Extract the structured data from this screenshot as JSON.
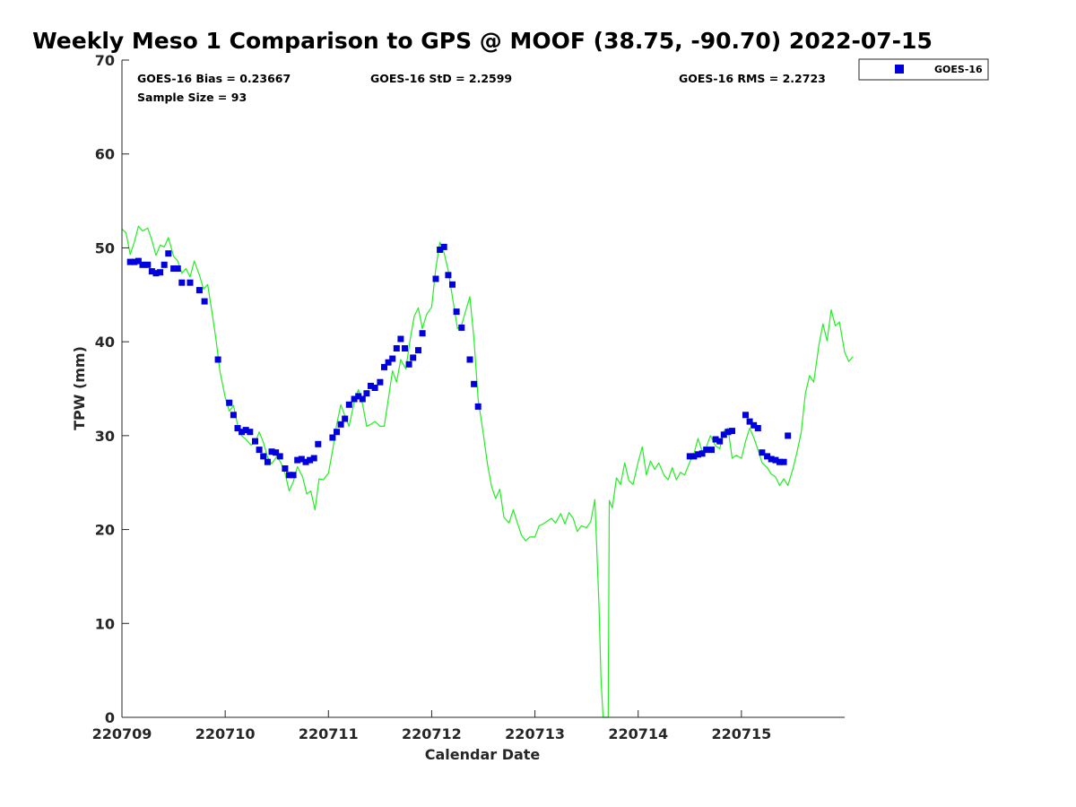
{
  "chart_data": {
    "type": "scatter",
    "title": "Weekly Meso 1 Comparison to GPS @ MOOF (38.75, -90.70) 2022-07-15",
    "xlabel": "Calendar Date",
    "ylabel": "TPW (mm)",
    "xlim": [
      0,
      7
    ],
    "ylim": [
      0,
      70
    ],
    "x_tick_labels": [
      "220709",
      "220710",
      "220711",
      "220712",
      "220713",
      "220714",
      "220715"
    ],
    "y_ticks": [
      0,
      10,
      20,
      30,
      40,
      50,
      60,
      70
    ],
    "legend": {
      "position": "outside-top-right",
      "entries": [
        "GOES-16"
      ]
    },
    "stats": {
      "bias": "GOES-16 Bias = 0.23667",
      "std": "GOES-16 StD = 2.2599",
      "rms": "GOES-16 RMS = 2.2723",
      "sample": "Sample Size = 93"
    },
    "series": [
      {
        "name": "GOES-16",
        "marker": "square",
        "color": "#0000dd",
        "points": [
          [
            0.08,
            48.5
          ],
          [
            0.12,
            48.5
          ],
          [
            0.16,
            48.6
          ],
          [
            0.2,
            48.2
          ],
          [
            0.25,
            48.2
          ],
          [
            0.29,
            47.5
          ],
          [
            0.33,
            47.3
          ],
          [
            0.37,
            47.4
          ],
          [
            0.41,
            48.2
          ],
          [
            0.45,
            49.4
          ],
          [
            0.5,
            47.8
          ],
          [
            0.54,
            47.8
          ],
          [
            0.58,
            46.3
          ],
          [
            0.66,
            46.3
          ],
          [
            0.75,
            45.5
          ],
          [
            0.8,
            44.3
          ],
          [
            0.93,
            38.1
          ],
          [
            1.04,
            33.5
          ],
          [
            1.08,
            32.2
          ],
          [
            1.12,
            30.8
          ],
          [
            1.16,
            30.4
          ],
          [
            1.2,
            30.6
          ],
          [
            1.24,
            30.4
          ],
          [
            1.29,
            29.4
          ],
          [
            1.33,
            28.5
          ],
          [
            1.37,
            27.8
          ],
          [
            1.41,
            27.2
          ],
          [
            1.45,
            28.3
          ],
          [
            1.49,
            28.2
          ],
          [
            1.53,
            27.8
          ],
          [
            1.58,
            26.5
          ],
          [
            1.62,
            25.8
          ],
          [
            1.66,
            25.8
          ],
          [
            1.7,
            27.4
          ],
          [
            1.74,
            27.5
          ],
          [
            1.78,
            27.2
          ],
          [
            1.82,
            27.4
          ],
          [
            1.86,
            27.6
          ],
          [
            1.9,
            29.1
          ],
          [
            2.04,
            29.8
          ],
          [
            2.08,
            30.4
          ],
          [
            2.12,
            31.2
          ],
          [
            2.16,
            31.8
          ],
          [
            2.2,
            33.3
          ],
          [
            2.25,
            33.9
          ],
          [
            2.29,
            34.2
          ],
          [
            2.33,
            33.9
          ],
          [
            2.37,
            34.5
          ],
          [
            2.41,
            35.3
          ],
          [
            2.45,
            35.1
          ],
          [
            2.5,
            35.7
          ],
          [
            2.54,
            37.3
          ],
          [
            2.58,
            37.8
          ],
          [
            2.62,
            38.2
          ],
          [
            2.66,
            39.3
          ],
          [
            2.7,
            40.3
          ],
          [
            2.74,
            39.3
          ],
          [
            2.78,
            37.6
          ],
          [
            2.82,
            38.3
          ],
          [
            2.87,
            39.1
          ],
          [
            2.91,
            40.9
          ],
          [
            3.04,
            46.7
          ],
          [
            3.08,
            49.8
          ],
          [
            3.12,
            50.1
          ],
          [
            3.16,
            47.1
          ],
          [
            3.2,
            46.1
          ],
          [
            3.24,
            43.2
          ],
          [
            3.29,
            41.5
          ],
          [
            3.37,
            38.1
          ],
          [
            3.41,
            35.5
          ],
          [
            3.45,
            33.1
          ],
          [
            5.5,
            27.8
          ],
          [
            5.54,
            27.8
          ],
          [
            5.58,
            28.0
          ],
          [
            5.62,
            28.1
          ],
          [
            5.66,
            28.5
          ],
          [
            5.71,
            28.5
          ],
          [
            5.75,
            29.6
          ],
          [
            5.79,
            29.4
          ],
          [
            5.83,
            30.1
          ],
          [
            5.87,
            30.4
          ],
          [
            5.91,
            30.5
          ],
          [
            6.04,
            32.2
          ],
          [
            6.08,
            31.5
          ],
          [
            6.12,
            31.1
          ],
          [
            6.16,
            30.8
          ],
          [
            6.2,
            28.2
          ],
          [
            6.25,
            27.8
          ],
          [
            6.29,
            27.5
          ],
          [
            6.33,
            27.4
          ],
          [
            6.37,
            27.2
          ],
          [
            6.41,
            27.2
          ],
          [
            6.45,
            30.0
          ]
        ]
      },
      {
        "name": "GPS",
        "marker": "line",
        "color": "#22ee22",
        "points": [
          [
            0.0,
            52.0
          ],
          [
            0.04,
            51.6
          ],
          [
            0.08,
            49.3
          ],
          [
            0.12,
            50.6
          ],
          [
            0.16,
            52.3
          ],
          [
            0.2,
            51.8
          ],
          [
            0.25,
            52.1
          ],
          [
            0.29,
            50.8
          ],
          [
            0.33,
            49.2
          ],
          [
            0.37,
            50.3
          ],
          [
            0.41,
            50.1
          ],
          [
            0.45,
            51.1
          ],
          [
            0.5,
            49.1
          ],
          [
            0.54,
            48.6
          ],
          [
            0.58,
            47.3
          ],
          [
            0.62,
            47.8
          ],
          [
            0.66,
            46.9
          ],
          [
            0.7,
            48.6
          ],
          [
            0.75,
            47.1
          ],
          [
            0.79,
            45.6
          ],
          [
            0.83,
            46.1
          ],
          [
            0.87,
            43.3
          ],
          [
            0.91,
            40.3
          ],
          [
            0.95,
            36.8
          ],
          [
            1.0,
            34.1
          ],
          [
            1.04,
            32.6
          ],
          [
            1.08,
            33.2
          ],
          [
            1.12,
            31.1
          ],
          [
            1.16,
            30.0
          ],
          [
            1.2,
            29.6
          ],
          [
            1.25,
            29.0
          ],
          [
            1.29,
            29.2
          ],
          [
            1.33,
            30.4
          ],
          [
            1.37,
            29.3
          ],
          [
            1.41,
            27.7
          ],
          [
            1.45,
            27.0
          ],
          [
            1.5,
            27.8
          ],
          [
            1.54,
            27.1
          ],
          [
            1.58,
            26.0
          ],
          [
            1.62,
            24.1
          ],
          [
            1.66,
            25.1
          ],
          [
            1.7,
            26.7
          ],
          [
            1.75,
            25.6
          ],
          [
            1.79,
            23.8
          ],
          [
            1.83,
            24.1
          ],
          [
            1.87,
            22.1
          ],
          [
            1.91,
            25.4
          ],
          [
            1.95,
            25.3
          ],
          [
            2.0,
            26.0
          ],
          [
            2.04,
            28.4
          ],
          [
            2.08,
            31.2
          ],
          [
            2.12,
            33.3
          ],
          [
            2.16,
            32.1
          ],
          [
            2.2,
            31.0
          ],
          [
            2.25,
            33.6
          ],
          [
            2.29,
            34.9
          ],
          [
            2.33,
            33.4
          ],
          [
            2.37,
            31.0
          ],
          [
            2.41,
            31.2
          ],
          [
            2.45,
            31.5
          ],
          [
            2.5,
            31.0
          ],
          [
            2.54,
            31.0
          ],
          [
            2.58,
            33.9
          ],
          [
            2.62,
            36.9
          ],
          [
            2.66,
            35.7
          ],
          [
            2.7,
            38.1
          ],
          [
            2.75,
            37.1
          ],
          [
            2.79,
            40.1
          ],
          [
            2.83,
            42.7
          ],
          [
            2.87,
            43.6
          ],
          [
            2.91,
            41.4
          ],
          [
            2.95,
            42.9
          ],
          [
            3.0,
            43.7
          ],
          [
            3.04,
            47.8
          ],
          [
            3.08,
            50.6
          ],
          [
            3.12,
            49.5
          ],
          [
            3.16,
            47.6
          ],
          [
            3.2,
            44.8
          ],
          [
            3.25,
            41.4
          ],
          [
            3.29,
            41.8
          ],
          [
            3.33,
            43.3
          ],
          [
            3.37,
            44.8
          ],
          [
            3.41,
            40.3
          ],
          [
            3.45,
            33.9
          ],
          [
            3.5,
            30.2
          ],
          [
            3.54,
            27.0
          ],
          [
            3.58,
            24.6
          ],
          [
            3.62,
            23.3
          ],
          [
            3.66,
            24.3
          ],
          [
            3.7,
            21.3
          ],
          [
            3.75,
            20.7
          ],
          [
            3.79,
            22.1
          ],
          [
            3.83,
            20.7
          ],
          [
            3.87,
            19.4
          ],
          [
            3.91,
            18.8
          ],
          [
            3.95,
            19.2
          ],
          [
            4.0,
            19.2
          ],
          [
            4.04,
            20.4
          ],
          [
            4.08,
            20.6
          ],
          [
            4.12,
            20.9
          ],
          [
            4.16,
            21.2
          ],
          [
            4.2,
            20.7
          ],
          [
            4.25,
            21.7
          ],
          [
            4.29,
            20.6
          ],
          [
            4.33,
            21.8
          ],
          [
            4.37,
            21.2
          ],
          [
            4.41,
            19.8
          ],
          [
            4.45,
            20.4
          ],
          [
            4.5,
            20.2
          ],
          [
            4.54,
            20.8
          ],
          [
            4.58,
            23.2
          ],
          [
            4.62,
            12.0
          ],
          [
            4.64,
            4.0
          ],
          [
            4.66,
            0.0
          ],
          [
            4.71,
            0.0
          ],
          [
            4.72,
            23.1
          ],
          [
            4.75,
            22.3
          ],
          [
            4.79,
            25.5
          ],
          [
            4.83,
            24.8
          ],
          [
            4.87,
            27.1
          ],
          [
            4.91,
            25.2
          ],
          [
            4.95,
            24.8
          ],
          [
            5.0,
            27.2
          ],
          [
            5.04,
            28.8
          ],
          [
            5.08,
            25.8
          ],
          [
            5.12,
            27.3
          ],
          [
            5.16,
            26.4
          ],
          [
            5.2,
            27.1
          ],
          [
            5.25,
            25.8
          ],
          [
            5.29,
            25.3
          ],
          [
            5.33,
            26.6
          ],
          [
            5.37,
            25.3
          ],
          [
            5.41,
            26.1
          ],
          [
            5.45,
            25.8
          ],
          [
            5.5,
            27.2
          ],
          [
            5.54,
            28.1
          ],
          [
            5.58,
            29.7
          ],
          [
            5.62,
            28.3
          ],
          [
            5.66,
            28.8
          ],
          [
            5.7,
            30.0
          ],
          [
            5.75,
            28.9
          ],
          [
            5.79,
            28.6
          ],
          [
            5.83,
            30.5
          ],
          [
            5.87,
            30.8
          ],
          [
            5.91,
            27.6
          ],
          [
            5.95,
            27.9
          ],
          [
            6.0,
            27.6
          ],
          [
            6.04,
            29.4
          ],
          [
            6.08,
            30.8
          ],
          [
            6.12,
            29.8
          ],
          [
            6.16,
            28.5
          ],
          [
            6.2,
            27.1
          ],
          [
            6.25,
            26.6
          ],
          [
            6.29,
            25.9
          ],
          [
            6.33,
            25.6
          ],
          [
            6.37,
            24.7
          ],
          [
            6.41,
            25.4
          ],
          [
            6.45,
            24.7
          ],
          [
            6.5,
            26.5
          ],
          [
            6.54,
            28.3
          ],
          [
            6.58,
            30.4
          ],
          [
            6.62,
            34.5
          ],
          [
            6.66,
            36.4
          ],
          [
            6.7,
            35.7
          ],
          [
            6.75,
            39.6
          ],
          [
            6.79,
            41.9
          ],
          [
            6.83,
            40.1
          ],
          [
            6.87,
            43.4
          ],
          [
            6.91,
            41.7
          ],
          [
            6.95,
            42.1
          ],
          [
            7.0,
            38.9
          ],
          [
            7.04,
            37.9
          ],
          [
            7.08,
            38.4
          ]
        ]
      }
    ]
  },
  "colors": {
    "axis": "#262626",
    "goes": "#0000dd",
    "gps": "#22ee22"
  }
}
